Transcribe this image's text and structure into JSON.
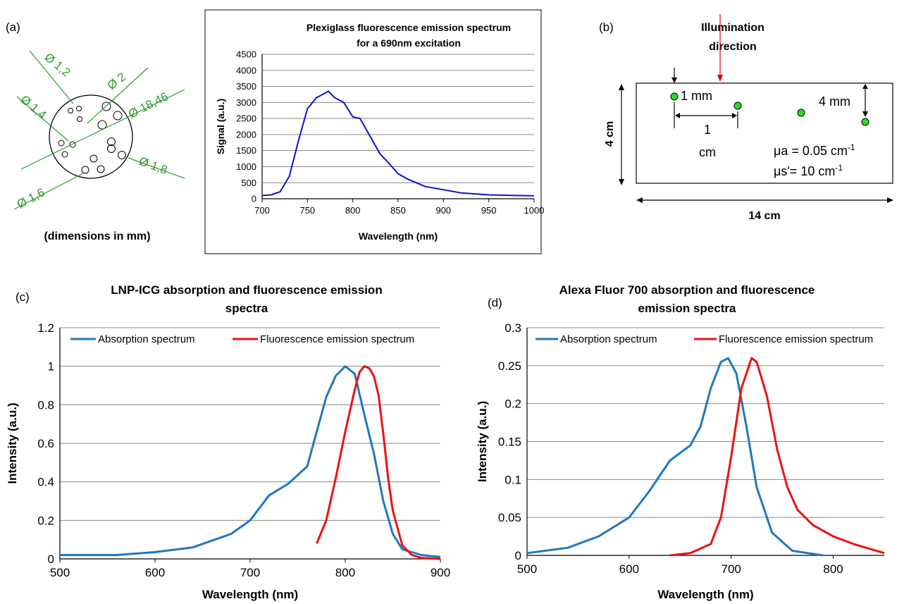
{
  "panel_a": {
    "label": "(a)",
    "dimensions_note": "(dimensions in mm)",
    "diameters": [
      "Ø 1,2",
      "Ø 2",
      "Ø 1,4",
      "Ø 18,46",
      "Ø 1,6",
      "Ø 1,8"
    ],
    "annotation_color": "#2e9a2e"
  },
  "panel_b": {
    "label": "(b)",
    "illumination": [
      "Illumination",
      "direction"
    ],
    "dim_1mm": "1 mm",
    "dim_4mm": "4 mm",
    "dim_1cm": [
      "1",
      "cm"
    ],
    "height": "4 cm",
    "width": "14 cm",
    "mua": "μa = 0.05 cm",
    "mua_sup": "-1",
    "mus": "μs'= 10 cm",
    "mus_sup": "-1",
    "arrow_color": "#e00000",
    "inclusion_color": "#22e022"
  },
  "panel_c": {
    "label": "(c)"
  },
  "panel_d": {
    "label": "(d)"
  },
  "chart_data": [
    {
      "type": "line",
      "title": "Plexiglass fluorescence emission spectrum for a 690nm excitation",
      "title_lines": [
        "Plexiglass fluorescence emission spectrum",
        "for a 690nm excitation"
      ],
      "xlabel": "Wavelength (nm)",
      "ylabel": "Signal (a.u.)",
      "xlim": [
        700,
        1000
      ],
      "ylim": [
        0,
        4500
      ],
      "xticks": [
        700,
        750,
        800,
        850,
        900,
        950,
        1000
      ],
      "yticks": [
        0,
        500,
        1000,
        1500,
        2000,
        2500,
        3000,
        3500,
        4000,
        4500
      ],
      "grid": true,
      "series": [
        {
          "color": "#1010d0",
          "x": [
            700,
            710,
            720,
            730,
            740,
            750,
            760,
            770,
            773,
            780,
            790,
            800,
            808,
            820,
            830,
            840,
            850,
            860,
            880,
            900,
            920,
            950,
            980,
            1000
          ],
          "y": [
            100,
            120,
            220,
            700,
            1800,
            2800,
            3150,
            3300,
            3350,
            3150,
            3000,
            2550,
            2500,
            1900,
            1400,
            1100,
            780,
            620,
            380,
            280,
            180,
            120,
            100,
            90
          ]
        }
      ]
    },
    {
      "type": "line",
      "title": "LNP-ICG absorption and fluorescence emission spectra",
      "title_lines": [
        "LNP-ICG absorption and fluorescence emission",
        "spectra"
      ],
      "xlabel": "Wavelength (nm)",
      "ylabel": "Intensity (a.u.)",
      "xlim": [
        500,
        900
      ],
      "ylim": [
        0,
        1.2
      ],
      "xticks": [
        500,
        600,
        700,
        800,
        900
      ],
      "yticks": [
        0,
        0.2,
        0.4,
        0.6,
        0.8,
        1,
        1.2
      ],
      "grid": true,
      "legend": "top",
      "series": [
        {
          "name": "Absorption spectrum",
          "color": "#1f77c0",
          "x": [
            500,
            560,
            600,
            640,
            680,
            700,
            720,
            740,
            760,
            780,
            790,
            800,
            810,
            820,
            830,
            840,
            850,
            860,
            880,
            900
          ],
          "y": [
            0.02,
            0.02,
            0.035,
            0.06,
            0.13,
            0.2,
            0.33,
            0.39,
            0.48,
            0.84,
            0.95,
            1.0,
            0.96,
            0.75,
            0.55,
            0.3,
            0.13,
            0.05,
            0.02,
            0.01
          ]
        },
        {
          "name": "Fluorescence emission spectrum",
          "color": "#ee1111",
          "x": [
            770,
            780,
            790,
            800,
            810,
            815,
            820,
            825,
            830,
            835,
            840,
            845,
            850,
            860,
            870,
            880,
            900
          ],
          "y": [
            0.08,
            0.2,
            0.42,
            0.66,
            0.88,
            0.97,
            1.0,
            0.99,
            0.95,
            0.85,
            0.65,
            0.42,
            0.25,
            0.07,
            0.02,
            0.005,
            0.0
          ]
        }
      ]
    },
    {
      "type": "line",
      "title": "Alexa Fluor 700 absorption and fluorescence emission spectra",
      "title_lines": [
        "Alexa Fluor 700 absorption and fluorescence",
        "emission spectra"
      ],
      "xlabel": "Wavelength (nm)",
      "ylabel": "Intensity (a.u.)",
      "xlim": [
        500,
        850
      ],
      "ylim": [
        0,
        0.3
      ],
      "xticks": [
        500,
        600,
        700,
        800
      ],
      "yticks": [
        0,
        0.05,
        0.1,
        0.15,
        0.2,
        0.25,
        0.3
      ],
      "grid": true,
      "legend": "top",
      "series": [
        {
          "name": "Absorption spectrum",
          "color": "#1f77c0",
          "x": [
            500,
            540,
            570,
            600,
            620,
            640,
            660,
            670,
            680,
            690,
            697,
            705,
            715,
            725,
            740,
            760,
            790
          ],
          "y": [
            0.003,
            0.01,
            0.025,
            0.05,
            0.085,
            0.125,
            0.145,
            0.17,
            0.22,
            0.255,
            0.26,
            0.24,
            0.17,
            0.09,
            0.03,
            0.006,
            0.0
          ]
        },
        {
          "name": "Fluorescence emission spectrum",
          "color": "#ee1111",
          "x": [
            640,
            660,
            680,
            690,
            700,
            710,
            720,
            725,
            735,
            745,
            755,
            765,
            780,
            800,
            820,
            850
          ],
          "y": [
            0.0,
            0.003,
            0.015,
            0.05,
            0.13,
            0.22,
            0.26,
            0.255,
            0.21,
            0.14,
            0.09,
            0.06,
            0.04,
            0.025,
            0.015,
            0.003
          ]
        }
      ]
    }
  ]
}
